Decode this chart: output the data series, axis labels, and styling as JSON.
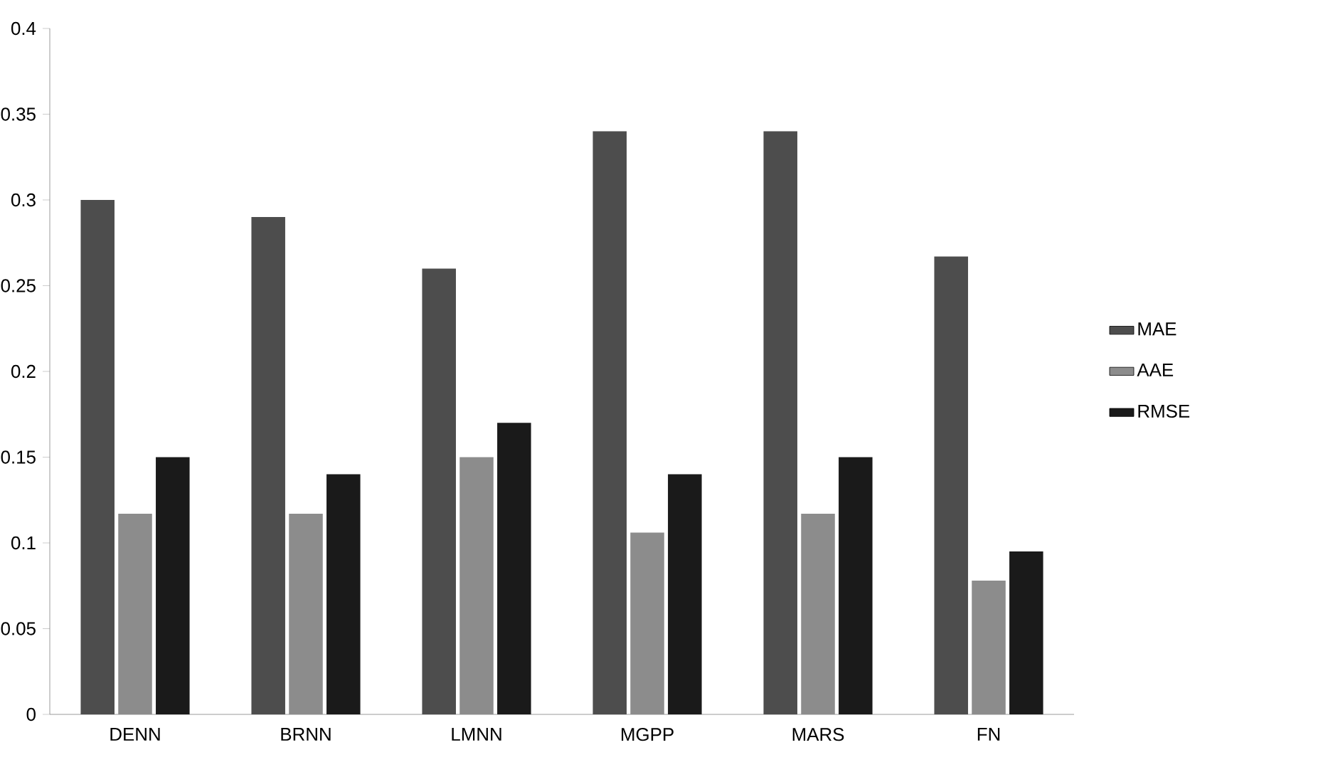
{
  "chart_data": {
    "type": "bar",
    "categories": [
      "DENN",
      "BRNN",
      "LMNN",
      "MGPP",
      "MARS",
      "FN"
    ],
    "series": [
      {
        "name": "MAE",
        "color": "#4d4d4d",
        "values": [
          0.3,
          0.29,
          0.26,
          0.34,
          0.34,
          0.267
        ]
      },
      {
        "name": "AAE",
        "color": "#8c8c8c",
        "values": [
          0.117,
          0.117,
          0.15,
          0.106,
          0.117,
          0.078
        ]
      },
      {
        "name": "RMSE",
        "color": "#1a1a1a",
        "values": [
          0.15,
          0.14,
          0.17,
          0.14,
          0.15,
          0.095
        ]
      }
    ],
    "ylim": [
      0,
      0.4
    ],
    "yticks": [
      0,
      0.05,
      0.1,
      0.15,
      0.2,
      0.25,
      0.3,
      0.35,
      0.4
    ],
    "grid": false,
    "legend": "right"
  }
}
